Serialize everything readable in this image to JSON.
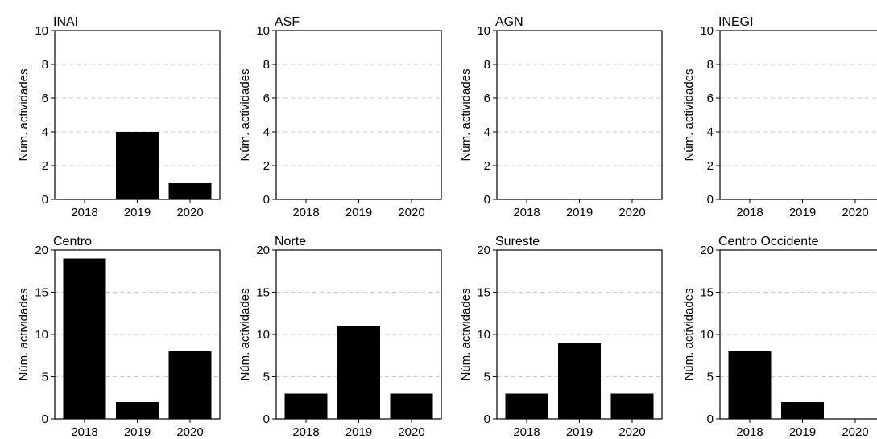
{
  "figure": {
    "ylabel": "Núm. actividades",
    "colors": {
      "bar": "#000000",
      "grid": "#c8c8c8",
      "frame": "#000000"
    }
  },
  "chart_data": [
    {
      "type": "bar",
      "title": "INAI",
      "categories": [
        "2018",
        "2019",
        "2020"
      ],
      "values": [
        0,
        4,
        1
      ],
      "ylim": [
        0,
        10
      ],
      "yticks": [
        "0",
        "2",
        "4",
        "6",
        "8",
        "10"
      ],
      "ylabel": "Núm. actividades",
      "grid": "horizontal-dashed"
    },
    {
      "type": "bar",
      "title": "ASF",
      "categories": [
        "2018",
        "2019",
        "2020"
      ],
      "values": [
        0,
        0,
        0
      ],
      "ylim": [
        0,
        10
      ],
      "yticks": [
        "0",
        "2",
        "4",
        "6",
        "8",
        "10"
      ],
      "ylabel": "Núm. actividades",
      "grid": "horizontal-dashed"
    },
    {
      "type": "bar",
      "title": "AGN",
      "categories": [
        "2018",
        "2019",
        "2020"
      ],
      "values": [
        0,
        0,
        0
      ],
      "ylim": [
        0,
        10
      ],
      "yticks": [
        "0",
        "2",
        "4",
        "6",
        "8",
        "10"
      ],
      "ylabel": "Núm. actividades",
      "grid": "horizontal-dashed"
    },
    {
      "type": "bar",
      "title": "INEGI",
      "categories": [
        "2018",
        "2019",
        "2020"
      ],
      "values": [
        0,
        0,
        0
      ],
      "ylim": [
        0,
        10
      ],
      "yticks": [
        "0",
        "2",
        "4",
        "6",
        "8",
        "10"
      ],
      "ylabel": "Núm. actividades",
      "grid": "horizontal-dashed"
    },
    {
      "type": "bar",
      "title": "Centro",
      "categories": [
        "2018",
        "2019",
        "2020"
      ],
      "values": [
        19,
        2,
        8
      ],
      "ylim": [
        0,
        20
      ],
      "yticks": [
        "0",
        "5",
        "10",
        "15",
        "20"
      ],
      "ylabel": "Núm. actividades",
      "grid": "horizontal-dashed"
    },
    {
      "type": "bar",
      "title": "Norte",
      "categories": [
        "2018",
        "2019",
        "2020"
      ],
      "values": [
        3,
        11,
        3
      ],
      "ylim": [
        0,
        20
      ],
      "yticks": [
        "0",
        "5",
        "10",
        "15",
        "20"
      ],
      "ylabel": "Núm. actividades",
      "grid": "horizontal-dashed"
    },
    {
      "type": "bar",
      "title": "Sureste",
      "categories": [
        "2018",
        "2019",
        "2020"
      ],
      "values": [
        3,
        9,
        3
      ],
      "ylim": [
        0,
        20
      ],
      "yticks": [
        "0",
        "5",
        "10",
        "15",
        "20"
      ],
      "ylabel": "Núm. actividades",
      "grid": "horizontal-dashed"
    },
    {
      "type": "bar",
      "title": "Centro Occidente",
      "categories": [
        "2018",
        "2019",
        "2020"
      ],
      "values": [
        8,
        2,
        0
      ],
      "ylim": [
        0,
        20
      ],
      "yticks": [
        "0",
        "5",
        "10",
        "15",
        "20"
      ],
      "ylabel": "Núm. actividades",
      "grid": "horizontal-dashed"
    }
  ]
}
